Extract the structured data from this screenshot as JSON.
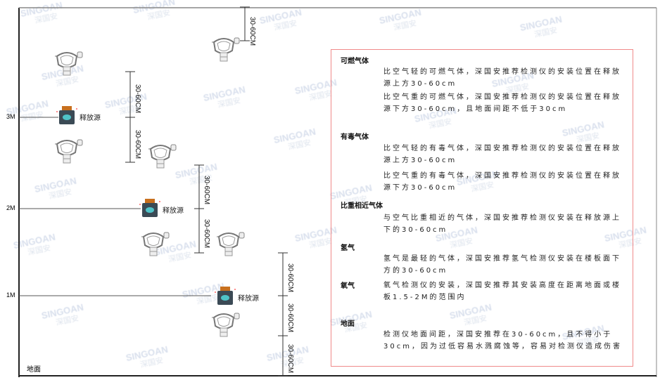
{
  "watermark": {
    "brand": "SINGOAN",
    "cn": "深国安"
  },
  "levels": [
    "3M",
    "2M",
    "1M"
  ],
  "floor_label": "地面",
  "source_label": "释放源",
  "dimension_label": "30-60CM",
  "colors": {
    "box_border": "#f08a8a",
    "source_body": "#3b4a55",
    "source_cap": "#c8701e",
    "source_face": "#4fc3c8"
  },
  "legend": {
    "sections": [
      {
        "title": "可燃气体",
        "paras": [
          "比空气轻的可燃气体，深国安推荐检测仪的安装位置在释放源上方30-60cm",
          "比空气重的可燃气体，深国安推荐检测仪的安装位置在释放源下方30-60cm，且地面间距不低于30cm"
        ]
      },
      {
        "title": "有毒气体",
        "paras": [
          "比空气轻的有毒气体，深国安推荐检测仪的安装位置在释放源上方30-60cm",
          "比空气重的有毒气体，深国安推荐检测仪的安装位置在释放源下方30-60cm"
        ]
      },
      {
        "title": "比重相近气体",
        "paras": [
          "与空气比重相近的气体，深国安推荐检测仪安装在释放源上下的30-60cm"
        ]
      },
      {
        "title": "氢气",
        "paras": [
          "氢气是最轻的气体，深国安推荐氢气检测仪安装在楼板面下方的30-60cm"
        ]
      },
      {
        "title": "氧气",
        "paras": [
          "氧气检测仪的安装，深国安推荐其安装高度在距离地面或楼板1.5-2M的范围内"
        ]
      },
      {
        "title": "地面",
        "paras": [
          "检测仪地面间距，深国安推荐在30-60cm，且不得小于30cm，因为过低容易水溅腐蚀等，容易对检测仪造成伤害"
        ]
      }
    ]
  }
}
